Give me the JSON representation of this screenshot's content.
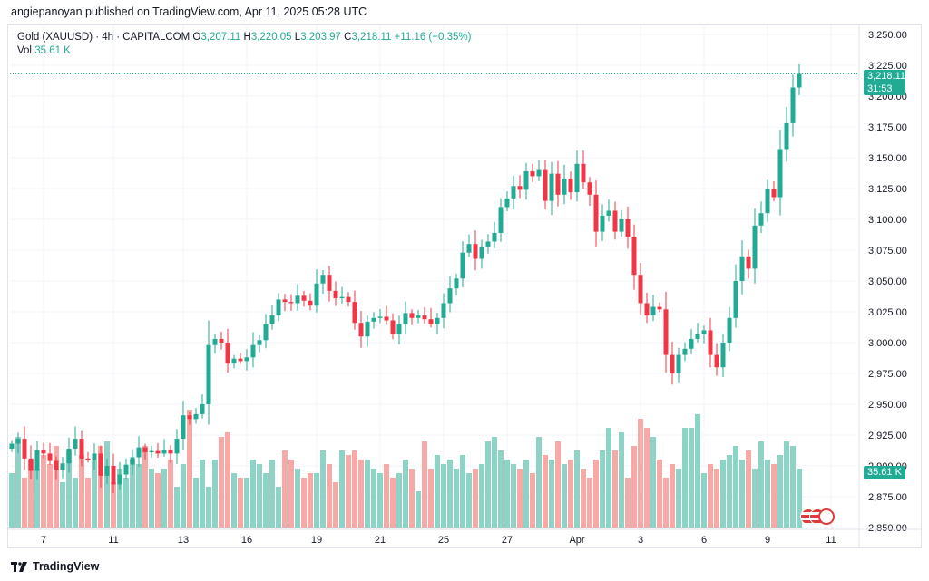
{
  "caption": "angiepanoyan published on TradingView.com, Apr 11, 2025 05:28 UTC",
  "legend": {
    "symbol": "Gold (XAUUSD) · 4h · CAPITALCOM",
    "o_label": "O",
    "o_value": "3,207.11",
    "h_label": "H",
    "h_value": "3,220.05",
    "l_label": "L",
    "l_value": "3,203.97",
    "c_label": "C",
    "c_value": "3,218.11",
    "change": "+11.16 (+0.35%)",
    "vol_label": "Vol",
    "vol_value": "35.61 K"
  },
  "price_tag": {
    "price": "3,218.11",
    "countdown": "31:53"
  },
  "volume_tag": "35.61 K",
  "footer": {
    "brand": "TradingView"
  },
  "colors": {
    "up": "#22ab94",
    "down": "#f23645",
    "vol_up": "#8ed4c6",
    "vol_down": "#f7a9a7"
  },
  "chart_data": {
    "type": "candlestick",
    "title": "Gold (XAUUSD) · 4h · CAPITALCOM",
    "y_ticks": [
      "3,250.00",
      "3,225.00",
      "3,200.00",
      "3,175.00",
      "3,150.00",
      "3,125.00",
      "3,100.00",
      "3,075.00",
      "3,050.00",
      "3,025.00",
      "3,000.00",
      "2,975.00",
      "2,950.00",
      "2,925.00",
      "2,900.00",
      "2,875.00",
      "2,850.00"
    ],
    "ylim": [
      2850,
      3250
    ],
    "x_ticks": [
      {
        "label": "7",
        "index": 5
      },
      {
        "label": "11",
        "index": 16
      },
      {
        "label": "13",
        "index": 27
      },
      {
        "label": "16",
        "index": 37
      },
      {
        "label": "19",
        "index": 48
      },
      {
        "label": "21",
        "index": 58
      },
      {
        "label": "25",
        "index": 68
      },
      {
        "label": "27",
        "index": 78
      },
      {
        "label": "Apr",
        "index": 89
      },
      {
        "label": "3",
        "index": 99
      },
      {
        "label": "6",
        "index": 109
      },
      {
        "label": "9",
        "index": 119
      },
      {
        "label": "11",
        "index": 129
      }
    ],
    "close": [
      2918,
      2922,
      2906,
      2896,
      2913,
      2910,
      2904,
      2897,
      2902,
      2914,
      2922,
      2906,
      2905,
      2910,
      2892,
      2900,
      2885,
      2893,
      2901,
      2907,
      2915,
      2911,
      2912,
      2910,
      2913,
      2910,
      2922,
      2941,
      2938,
      2942,
      2950,
      2998,
      3003,
      3000,
      2983,
      2987,
      2985,
      2988,
      2998,
      3002,
      3015,
      3022,
      3035,
      3033,
      3032,
      3038,
      3034,
      3030,
      3048,
      3055,
      3042,
      3036,
      3037,
      3033,
      3016,
      3005,
      3017,
      3020,
      3021,
      3018,
      3007,
      3015,
      3024,
      3020,
      3022,
      3019,
      3015,
      3020,
      3032,
      3044,
      3052,
      3073,
      3080,
      3068,
      3078,
      3082,
      3089,
      3110,
      3117,
      3127,
      3124,
      3139,
      3135,
      3140,
      3115,
      3137,
      3120,
      3133,
      3122,
      3145,
      3130,
      3120,
      3090,
      3103,
      3107,
      3090,
      3100,
      3086,
      3055,
      3032,
      3022,
      3029,
      3027,
      2990,
      2975,
      2990,
      2995,
      3003,
      3007,
      3010,
      2990,
      2980,
      3000,
      3020,
      3050,
      3070,
      3060,
      3095,
      3105,
      3125,
      3118,
      3157,
      3178,
      3207,
      3218
    ],
    "volume": [
      24,
      40,
      22,
      30,
      26,
      32,
      28,
      36,
      20,
      34,
      22,
      32,
      22,
      30,
      36,
      38,
      20,
      26,
      22,
      30,
      28,
      36,
      26,
      24,
      26,
      30,
      18,
      28,
      52,
      22,
      30,
      18,
      30,
      40,
      42,
      24,
      22,
      22,
      30,
      28,
      24,
      30,
      18,
      34,
      30,
      26,
      22,
      24,
      24,
      34,
      28,
      20,
      34,
      32,
      34,
      30,
      30,
      26,
      24,
      28,
      22,
      24,
      30,
      26,
      16,
      38,
      26,
      32,
      28,
      30,
      26,
      32,
      24,
      26,
      28,
      38,
      40,
      34,
      30,
      28,
      26,
      30,
      24,
      40,
      32,
      30,
      38,
      28,
      30,
      34,
      26,
      22,
      30,
      34,
      44,
      34,
      42,
      22,
      36,
      48,
      44,
      40,
      30,
      22,
      28,
      26,
      44,
      44,
      50,
      24,
      28,
      26,
      30,
      32,
      36,
      30,
      34,
      26,
      38,
      30,
      28,
      32,
      38,
      36,
      26
    ]
  }
}
